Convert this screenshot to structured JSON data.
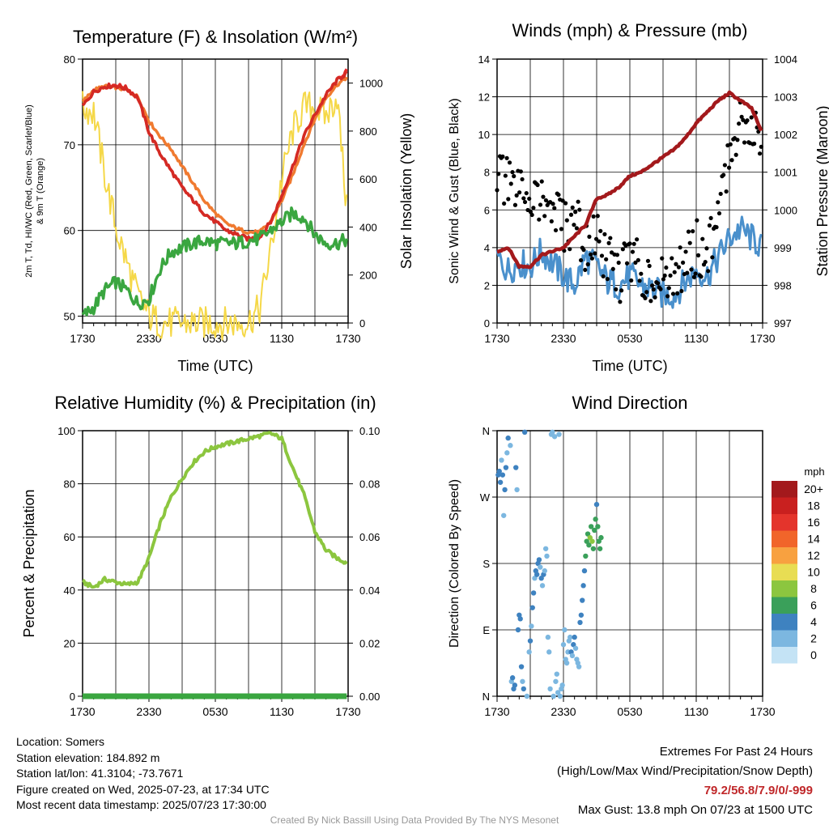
{
  "colors": {
    "temp": "#d42a24",
    "dew": "#3aa640",
    "hiwc": "#e8282a",
    "t9m": "#f07a30",
    "solar": "#f5d848",
    "wind": "#4a90cc",
    "gust": "#000000",
    "pressure": "#a3191c",
    "rh": "#8cc63f",
    "precip": "#3aa640",
    "extremes": "#c0282a",
    "credit": "#999999"
  },
  "chart_data": [
    {
      "type": "line",
      "title": "Temperature (F) & Insolation (W/m²)",
      "xlabel": "Time (UTC)",
      "ylabel": "2m T, Td, HI/WC (Red, Green, Scarlet/Blue) & 9m T (Orange)",
      "ylabel_right": "Solar Insolation (Yellow)",
      "x_ticks": [
        "1730",
        "2330",
        "0530",
        "1130",
        "1730"
      ],
      "ylim": [
        47.5,
        80
      ],
      "y_ticks": [
        50,
        60,
        70,
        80
      ],
      "ylim_right": [
        0,
        1100
      ],
      "y_ticks_right": [
        0,
        200,
        400,
        600,
        800,
        1000
      ],
      "grid": true,
      "x": [
        0,
        1,
        2,
        3,
        4,
        5,
        6,
        7,
        8,
        9,
        10,
        11,
        12,
        13,
        14,
        15,
        16,
        17,
        18,
        19,
        20,
        21,
        22,
        23,
        24
      ],
      "series": [
        {
          "key": "temp",
          "values": [
            74.5,
            76.2,
            76.8,
            76.9,
            76.5,
            75.5,
            71.5,
            69.0,
            67.0,
            65.0,
            63.5,
            62.0,
            61.0,
            60.0,
            59.5,
            59.0,
            59.2,
            61.0,
            64.0,
            67.5,
            71.0,
            73.5,
            75.8,
            77.5,
            78.5
          ]
        },
        {
          "key": "hiwc",
          "values": [
            74.5,
            76.2,
            76.8,
            77.0,
            76.6,
            75.5,
            71.5,
            69.0,
            67.0,
            65.0,
            63.5,
            62.0,
            61.0,
            60.0,
            59.5,
            59.0,
            59.2,
            61.0,
            64.0,
            67.5,
            71.0,
            73.5,
            75.8,
            77.5,
            78.8
          ]
        },
        {
          "key": "t9m",
          "values": [
            75.0,
            76.4,
            76.8,
            76.7,
            76.4,
            75.6,
            72.8,
            71.0,
            69.5,
            67.5,
            65.5,
            63.5,
            62.0,
            60.8,
            60.2,
            59.8,
            59.8,
            61.0,
            63.5,
            66.5,
            70.0,
            73.0,
            75.5,
            77.0,
            78.0
          ]
        },
        {
          "key": "dew",
          "values": [
            50.0,
            51.0,
            53.0,
            54.0,
            53.0,
            51.5,
            52.0,
            55.5,
            57.5,
            58.0,
            58.5,
            58.8,
            58.5,
            58.5,
            58.5,
            58.8,
            59.0,
            60.0,
            61.0,
            62.0,
            61.5,
            59.5,
            58.5,
            58.5,
            59.0
          ]
        },
        {
          "key": "solar",
          "axis": "right",
          "values": [
            900,
            880,
            620,
            400,
            250,
            110,
            30,
            0,
            0,
            0,
            0,
            0,
            0,
            0,
            0,
            5,
            60,
            300,
            600,
            800,
            900,
            900,
            860,
            950,
            400
          ]
        }
      ]
    },
    {
      "type": "line",
      "title": "Winds (mph) & Pressure (mb)",
      "xlabel": "Time (UTC)",
      "ylabel": "Sonic Wind & Gust (Blue, Black)",
      "ylabel_right": "Station Pressure (Maroon)",
      "x_ticks": [
        "1730",
        "2330",
        "0530",
        "1130",
        "1730"
      ],
      "ylim": [
        0,
        14
      ],
      "y_ticks": [
        0,
        2,
        4,
        6,
        8,
        10,
        12,
        14
      ],
      "ylim_right": [
        997,
        1004
      ],
      "y_ticks_right": [
        997,
        998,
        999,
        1000,
        1001,
        1002,
        1003,
        1004
      ],
      "grid": true,
      "x": [
        0,
        1,
        2,
        3,
        4,
        5,
        6,
        7,
        8,
        9,
        10,
        11,
        12,
        13,
        14,
        15,
        16,
        17,
        18,
        19,
        20,
        21,
        22,
        23,
        24
      ],
      "series": [
        {
          "key": "wind",
          "values": [
            3.5,
            2.8,
            3.2,
            3.0,
            3.8,
            3.2,
            2.5,
            2.0,
            3.5,
            3.0,
            2.2,
            2.0,
            2.5,
            2.0,
            1.8,
            1.5,
            1.5,
            2.2,
            2.8,
            2.5,
            3.5,
            4.5,
            5.0,
            4.5,
            4.0
          ]
        },
        {
          "key": "gust",
          "values": [
            8.0,
            7.2,
            6.8,
            7.0,
            6.5,
            6.0,
            5.0,
            5.5,
            4.0,
            4.5,
            3.2,
            2.5,
            3.5,
            2.8,
            2.5,
            2.0,
            2.2,
            3.5,
            4.0,
            3.8,
            5.5,
            9.0,
            11.0,
            10.5,
            10.0
          ]
        },
        {
          "key": "pressure",
          "axis": "right",
          "values": [
            998.9,
            999.0,
            998.5,
            998.5,
            998.8,
            998.9,
            999.0,
            999.3,
            999.6,
            1000.3,
            1000.4,
            1000.6,
            1000.9,
            1001.0,
            1001.2,
            1001.4,
            1001.6,
            1001.9,
            1002.3,
            1002.6,
            1002.9,
            1003.1,
            1002.9,
            1002.7,
            1002.0
          ]
        }
      ]
    },
    {
      "type": "line",
      "title": "Relative Humidity (%) & Precipitation (in)",
      "xlabel": "",
      "ylabel": "Percent & Precipitation",
      "x_ticks": [
        "1730",
        "2330",
        "0530",
        "1130",
        "1730"
      ],
      "ylim": [
        0,
        100
      ],
      "y_ticks": [
        0,
        20,
        40,
        60,
        80,
        100
      ],
      "ylim_right": [
        0,
        0.1
      ],
      "y_ticks_right": [
        "0.00",
        "0.02",
        "0.04",
        "0.06",
        "0.08",
        "0.10"
      ],
      "grid": true,
      "x": [
        0,
        1,
        2,
        3,
        4,
        5,
        6,
        7,
        8,
        9,
        10,
        11,
        12,
        13,
        14,
        15,
        16,
        17,
        18,
        19,
        20,
        21,
        22,
        23,
        24
      ],
      "series": [
        {
          "key": "rh",
          "values": [
            43,
            41,
            44,
            43,
            42,
            43,
            52,
            65,
            75,
            82,
            88,
            92,
            94,
            95,
            96,
            97,
            98,
            99,
            97,
            86,
            76,
            62,
            55,
            52,
            50
          ]
        },
        {
          "key": "precip",
          "axis": "right",
          "values": [
            0,
            0,
            0,
            0,
            0,
            0,
            0,
            0,
            0,
            0,
            0,
            0,
            0,
            0,
            0,
            0,
            0,
            0,
            0,
            0,
            0,
            0,
            0,
            0,
            0
          ]
        }
      ]
    },
    {
      "type": "scatter",
      "title": "Wind Direction",
      "xlabel": "",
      "ylabel": "Direction (Colored By Speed)",
      "x_ticks": [
        "1730",
        "2330",
        "0530",
        "1130",
        "1730"
      ],
      "y_ticks": [
        "N",
        "E",
        "S",
        "W",
        "N"
      ],
      "ylim": [
        0,
        360
      ],
      "grid": true,
      "legend": {
        "title": "mph",
        "placement": "right",
        "labels": [
          "20+",
          "18",
          "16",
          "14",
          "12",
          "10",
          "8",
          "6",
          "4",
          "2",
          "0"
        ],
        "colors": [
          "#a3191c",
          "#c9201f",
          "#e4342c",
          "#f1652a",
          "#f8a140",
          "#e8dd53",
          "#8cc63f",
          "#3aa05a",
          "#3e82c0",
          "#7cb7e0",
          "#c4e3f5"
        ]
      },
      "points": [
        {
          "x": 0.1,
          "y": 300,
          "s": 3
        },
        {
          "x": 0.2,
          "y": 305,
          "s": 4
        },
        {
          "x": 0.3,
          "y": 290,
          "s": 3
        },
        {
          "x": 0.4,
          "y": 320,
          "s": 2
        },
        {
          "x": 0.5,
          "y": 300,
          "s": 4
        },
        {
          "x": 0.6,
          "y": 245,
          "s": 2
        },
        {
          "x": 0.7,
          "y": 280,
          "s": 3
        },
        {
          "x": 0.8,
          "y": 310,
          "s": 3
        },
        {
          "x": 0.9,
          "y": 330,
          "s": 2
        },
        {
          "x": 1.0,
          "y": 350,
          "s": 3
        },
        {
          "x": 1.2,
          "y": 340,
          "s": 2
        },
        {
          "x": 1.3,
          "y": 20,
          "s": 2
        },
        {
          "x": 1.4,
          "y": 25,
          "s": 3
        },
        {
          "x": 1.5,
          "y": 10,
          "s": 4
        },
        {
          "x": 1.6,
          "y": 15,
          "s": 3
        },
        {
          "x": 1.7,
          "y": 310,
          "s": 3
        },
        {
          "x": 1.8,
          "y": 280,
          "s": 2
        },
        {
          "x": 1.9,
          "y": 90,
          "s": 3
        },
        {
          "x": 2.0,
          "y": 110,
          "s": 4
        },
        {
          "x": 2.1,
          "y": 105,
          "s": 3
        },
        {
          "x": 2.2,
          "y": 40,
          "s": 3
        },
        {
          "x": 2.3,
          "y": 20,
          "s": 2
        },
        {
          "x": 2.4,
          "y": 10,
          "s": 4
        },
        {
          "x": 2.5,
          "y": 358,
          "s": 3
        },
        {
          "x": 2.7,
          "y": 0,
          "s": 2
        },
        {
          "x": 2.9,
          "y": 60,
          "s": 2
        },
        {
          "x": 3.0,
          "y": 75,
          "s": 3
        },
        {
          "x": 3.1,
          "y": 95,
          "s": 2
        },
        {
          "x": 3.2,
          "y": 120,
          "s": 4
        },
        {
          "x": 3.3,
          "y": 140,
          "s": 3
        },
        {
          "x": 3.4,
          "y": 160,
          "s": 2
        },
        {
          "x": 3.5,
          "y": 170,
          "s": 3
        },
        {
          "x": 3.6,
          "y": 165,
          "s": 3
        },
        {
          "x": 3.7,
          "y": 180,
          "s": 4
        },
        {
          "x": 3.8,
          "y": 185,
          "s": 3
        },
        {
          "x": 3.9,
          "y": 175,
          "s": 2
        },
        {
          "x": 4.0,
          "y": 160,
          "s": 3
        },
        {
          "x": 4.1,
          "y": 150,
          "s": 2
        },
        {
          "x": 4.2,
          "y": 165,
          "s": 3
        },
        {
          "x": 4.3,
          "y": 170,
          "s": 2
        },
        {
          "x": 4.4,
          "y": 200,
          "s": 1
        },
        {
          "x": 4.5,
          "y": 190,
          "s": 2
        },
        {
          "x": 4.6,
          "y": 80,
          "s": 2
        },
        {
          "x": 4.7,
          "y": 60,
          "s": 1
        },
        {
          "x": 4.8,
          "y": 10,
          "s": 1
        },
        {
          "x": 4.9,
          "y": 355,
          "s": 1
        },
        {
          "x": 5.0,
          "y": 358,
          "s": 2
        },
        {
          "x": 5.1,
          "y": 0,
          "s": 2
        },
        {
          "x": 5.2,
          "y": 352,
          "s": 1
        },
        {
          "x": 5.3,
          "y": 20,
          "s": 1
        },
        {
          "x": 5.4,
          "y": 30,
          "s": 1
        },
        {
          "x": 5.5,
          "y": 5,
          "s": 2
        },
        {
          "x": 5.6,
          "y": 355,
          "s": 1
        },
        {
          "x": 5.7,
          "y": 0,
          "s": 2
        },
        {
          "x": 5.8,
          "y": 10,
          "s": 2
        },
        {
          "x": 5.9,
          "y": 15,
          "s": 1
        },
        {
          "x": 6.0,
          "y": 70,
          "s": 2
        },
        {
          "x": 6.1,
          "y": 90,
          "s": 1
        },
        {
          "x": 6.2,
          "y": 50,
          "s": 1
        },
        {
          "x": 6.3,
          "y": 45,
          "s": 2
        },
        {
          "x": 6.4,
          "y": 60,
          "s": 1
        },
        {
          "x": 6.5,
          "y": 75,
          "s": 1
        },
        {
          "x": 6.6,
          "y": 80,
          "s": 2
        },
        {
          "x": 6.7,
          "y": 60,
          "s": 3
        },
        {
          "x": 6.8,
          "y": 55,
          "s": 2
        },
        {
          "x": 6.9,
          "y": 70,
          "s": 3
        },
        {
          "x": 7.0,
          "y": 80,
          "s": 3
        },
        {
          "x": 7.1,
          "y": 65,
          "s": 2
        },
        {
          "x": 7.2,
          "y": 50,
          "s": 2
        },
        {
          "x": 7.3,
          "y": 45,
          "s": 2
        },
        {
          "x": 7.4,
          "y": 40,
          "s": 2
        },
        {
          "x": 7.5,
          "y": 100,
          "s": 3
        },
        {
          "x": 7.6,
          "y": 110,
          "s": 3
        },
        {
          "x": 7.7,
          "y": 130,
          "s": 4
        },
        {
          "x": 7.8,
          "y": 150,
          "s": 4
        },
        {
          "x": 7.9,
          "y": 170,
          "s": 4
        },
        {
          "x": 8.0,
          "y": 190,
          "s": 5
        },
        {
          "x": 8.1,
          "y": 210,
          "s": 5
        },
        {
          "x": 8.2,
          "y": 220,
          "s": 6
        },
        {
          "x": 8.3,
          "y": 205,
          "s": 6
        },
        {
          "x": 8.4,
          "y": 215,
          "s": 7
        },
        {
          "x": 8.5,
          "y": 230,
          "s": 6
        },
        {
          "x": 8.6,
          "y": 210,
          "s": 7
        },
        {
          "x": 8.7,
          "y": 200,
          "s": 6
        },
        {
          "x": 8.8,
          "y": 225,
          "s": 6
        },
        {
          "x": 8.9,
          "y": 240,
          "s": 5
        },
        {
          "x": 9.0,
          "y": 260,
          "s": 4
        },
        {
          "x": 9.1,
          "y": 230,
          "s": 6
        },
        {
          "x": 9.2,
          "y": 210,
          "s": 6
        },
        {
          "x": 9.3,
          "y": 200,
          "s": 6
        },
        {
          "x": 9.4,
          "y": 215,
          "s": 5
        }
      ]
    }
  ],
  "info": {
    "location": "Location: Somers",
    "elevation": "Station elevation: 184.892 m",
    "latlon": "Station lat/lon: 41.3104; -73.7671",
    "created": "Figure created on Wed, 2025-07-23, at 17:34 UTC",
    "recent": "Most recent data timestamp: 2025/07/23 17:30:00"
  },
  "extremes": {
    "title": "Extremes For Past 24 Hours",
    "subtitle": "(High/Low/Max Wind/Precipitation/Snow Depth)",
    "values": "79.2/56.8/7.9/0/-999",
    "gust": "Max Gust: 13.8 mph On 07/23 at 1500 UTC"
  },
  "credit": "Created By Nick Bassill Using Data Provided By The NYS Mesonet"
}
